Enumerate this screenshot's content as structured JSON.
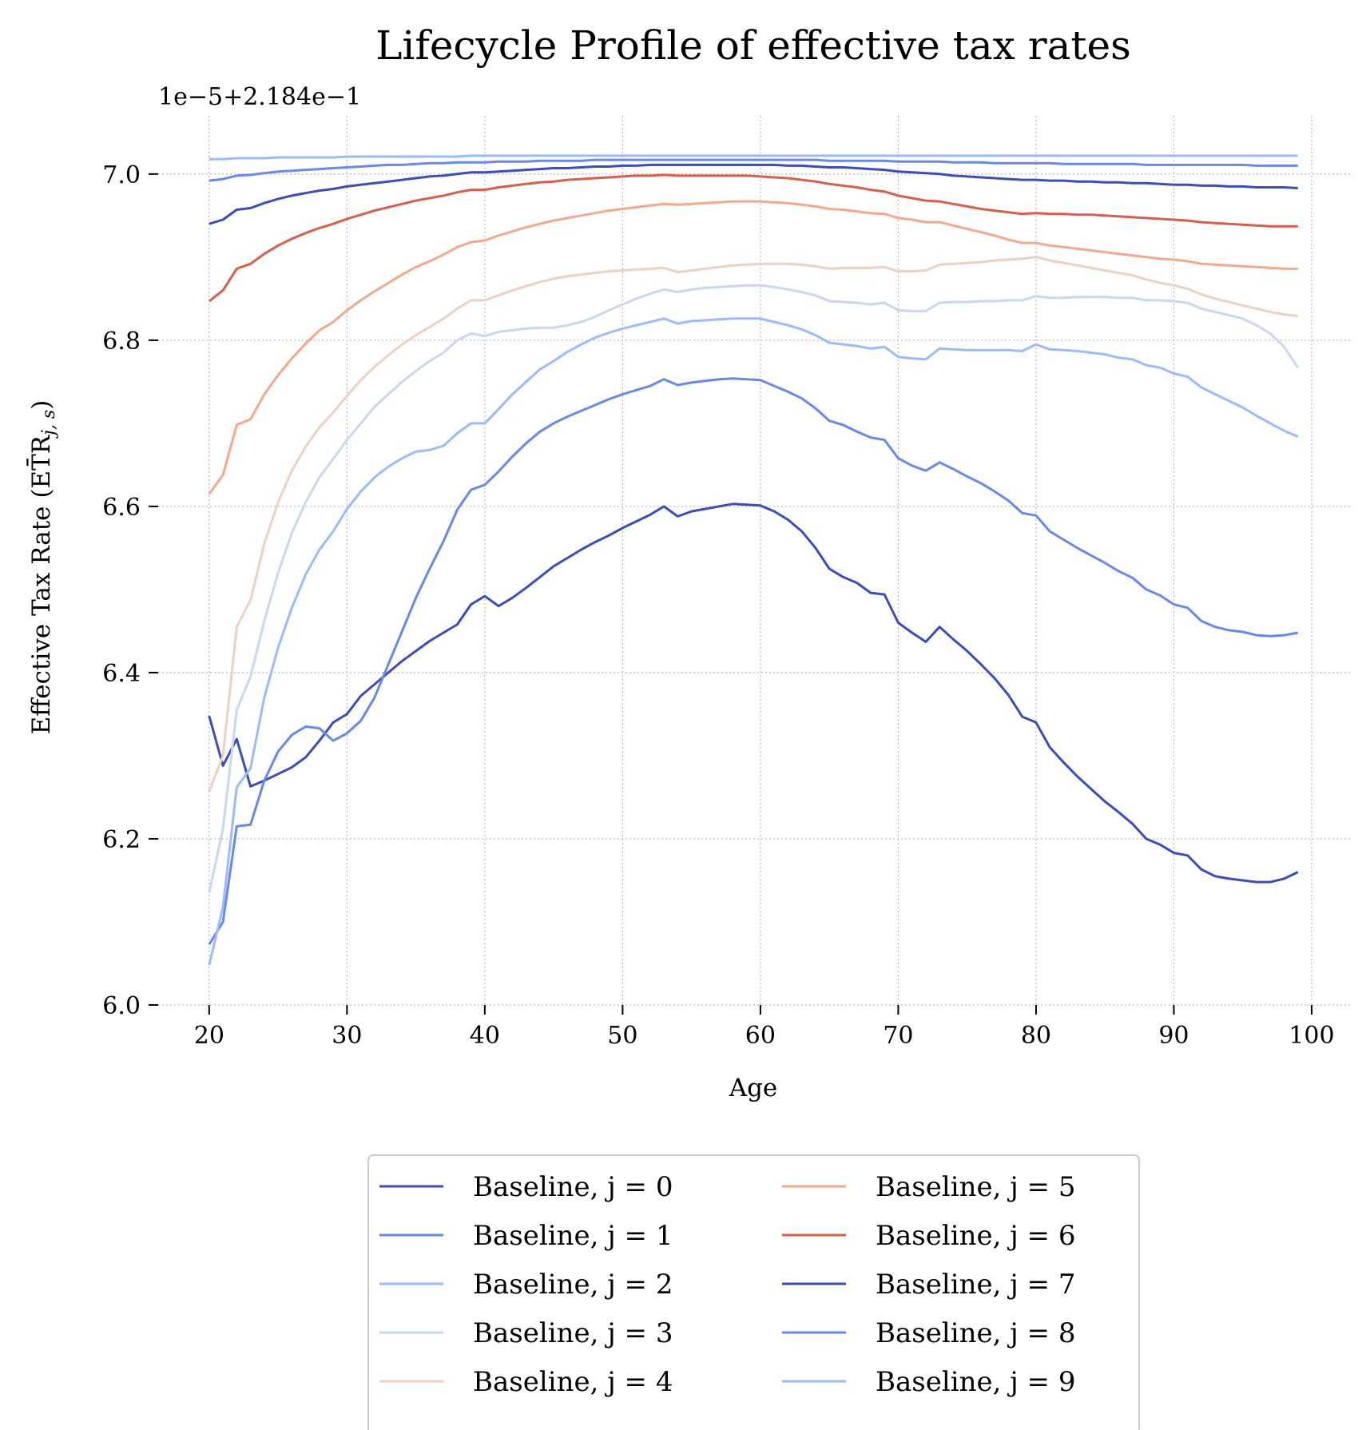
{
  "chart_data": {
    "type": "line",
    "title": "Lifecycle Profile of effective tax rates",
    "xlabel": "Age",
    "ylabel": "Effective Tax Rate (ET̄R",
    "ylabel_sub": "j, s",
    "ylabel_close": ")",
    "y_offset_label": "1e−5+2.184e−1",
    "xlim": [
      16.3,
      102.9
    ],
    "ylim": [
      6.0,
      7.07
    ],
    "x_ticks": [
      20,
      30,
      40,
      50,
      60,
      70,
      80,
      90,
      100
    ],
    "x_tick_labels": [
      "20",
      "30",
      "40",
      "50",
      "60",
      "70",
      "80",
      "90",
      "100"
    ],
    "y_ticks": [
      6.0,
      6.2,
      6.4,
      6.6,
      6.8,
      7.0
    ],
    "y_tick_labels": [
      "6.0",
      "6.2",
      "6.4",
      "6.6",
      "6.8",
      "7.0"
    ],
    "grid": true,
    "legend_position": "below plot, 2 columns",
    "x": [
      20,
      21,
      22,
      23,
      24,
      25,
      26,
      27,
      28,
      29,
      30,
      31,
      32,
      33,
      34,
      35,
      36,
      37,
      38,
      39,
      40,
      41,
      42,
      43,
      44,
      45,
      46,
      47,
      48,
      49,
      50,
      51,
      52,
      53,
      54,
      55,
      56,
      57,
      58,
      59,
      60,
      61,
      62,
      63,
      64,
      65,
      66,
      67,
      68,
      69,
      70,
      71,
      72,
      73,
      74,
      75,
      76,
      77,
      78,
      79,
      80,
      81,
      82,
      83,
      84,
      85,
      86,
      87,
      88,
      89,
      90,
      91,
      92,
      93,
      94,
      95,
      96,
      97,
      98,
      99
    ],
    "series": [
      {
        "name": "Baseline, j = 0",
        "color": "#3b4cc0",
        "values": [
          6.348,
          6.288,
          6.32,
          6.263,
          6.27,
          6.278,
          6.286,
          6.298,
          6.318,
          6.34,
          6.35,
          6.372,
          6.386,
          6.4,
          6.414,
          6.426,
          6.438,
          6.448,
          6.458,
          6.482,
          6.492,
          6.48,
          6.49,
          6.502,
          6.515,
          6.528,
          6.538,
          6.548,
          6.557,
          6.565,
          6.574,
          6.582,
          6.59,
          6.6,
          6.588,
          6.594,
          6.597,
          6.6,
          6.603,
          6.602,
          6.601,
          6.594,
          6.584,
          6.57,
          6.55,
          6.525,
          6.515,
          6.508,
          6.496,
          6.494,
          6.46,
          6.448,
          6.437,
          6.455,
          6.44,
          6.426,
          6.41,
          6.393,
          6.373,
          6.347,
          6.34,
          6.31,
          6.292,
          6.275,
          6.26,
          6.245,
          6.232,
          6.218,
          6.2,
          6.193,
          6.183,
          6.18,
          6.163,
          6.155,
          6.152,
          6.15,
          6.148,
          6.148,
          6.152,
          6.16
        ]
      },
      {
        "name": "Baseline, j = 1",
        "color": "#6788ee",
        "values": [
          6.073,
          6.1,
          6.215,
          6.217,
          6.27,
          6.305,
          6.325,
          6.335,
          6.333,
          6.318,
          6.327,
          6.342,
          6.37,
          6.41,
          6.45,
          6.49,
          6.525,
          6.558,
          6.596,
          6.62,
          6.626,
          6.642,
          6.66,
          6.676,
          6.69,
          6.7,
          6.708,
          6.715,
          6.722,
          6.729,
          6.735,
          6.74,
          6.745,
          6.753,
          6.746,
          6.749,
          6.751,
          6.753,
          6.754,
          6.753,
          6.752,
          6.745,
          6.738,
          6.73,
          6.718,
          6.703,
          6.698,
          6.69,
          6.683,
          6.68,
          6.658,
          6.649,
          6.643,
          6.653,
          6.645,
          6.636,
          6.628,
          6.618,
          6.607,
          6.592,
          6.589,
          6.57,
          6.56,
          6.55,
          6.541,
          6.532,
          6.522,
          6.514,
          6.5,
          6.493,
          6.482,
          6.478,
          6.462,
          6.455,
          6.451,
          6.449,
          6.445,
          6.444,
          6.445,
          6.448
        ]
      },
      {
        "name": "Baseline, j = 2",
        "color": "#9abbff",
        "values": [
          6.048,
          6.118,
          6.262,
          6.285,
          6.37,
          6.43,
          6.478,
          6.518,
          6.548,
          6.57,
          6.597,
          6.618,
          6.635,
          6.648,
          6.658,
          6.666,
          6.668,
          6.673,
          6.688,
          6.7,
          6.7,
          6.717,
          6.735,
          6.75,
          6.765,
          6.775,
          6.786,
          6.795,
          6.803,
          6.809,
          6.814,
          6.818,
          6.822,
          6.826,
          6.82,
          6.823,
          6.824,
          6.825,
          6.826,
          6.826,
          6.826,
          6.822,
          6.818,
          6.813,
          6.806,
          6.797,
          6.795,
          6.793,
          6.79,
          6.792,
          6.78,
          6.778,
          6.777,
          6.79,
          6.789,
          6.788,
          6.788,
          6.788,
          6.788,
          6.787,
          6.795,
          6.789,
          6.788,
          6.787,
          6.785,
          6.783,
          6.779,
          6.777,
          6.77,
          6.767,
          6.76,
          6.756,
          6.743,
          6.735,
          6.727,
          6.719,
          6.709,
          6.7,
          6.691,
          6.684
        ]
      },
      {
        "name": "Baseline, j = 3",
        "color": "#c9d7f0",
        "values": [
          6.135,
          6.212,
          6.355,
          6.395,
          6.462,
          6.52,
          6.568,
          6.605,
          6.635,
          6.657,
          6.68,
          6.7,
          6.72,
          6.735,
          6.75,
          6.763,
          6.775,
          6.785,
          6.8,
          6.808,
          6.805,
          6.81,
          6.812,
          6.814,
          6.815,
          6.815,
          6.818,
          6.822,
          6.828,
          6.836,
          6.843,
          6.85,
          6.856,
          6.861,
          6.858,
          6.861,
          6.863,
          6.864,
          6.865,
          6.866,
          6.866,
          6.864,
          6.861,
          6.858,
          6.854,
          6.847,
          6.846,
          6.845,
          6.843,
          6.845,
          6.836,
          6.835,
          6.835,
          6.845,
          6.846,
          6.846,
          6.847,
          6.847,
          6.848,
          6.848,
          6.853,
          6.851,
          6.851,
          6.852,
          6.852,
          6.852,
          6.851,
          6.851,
          6.848,
          6.848,
          6.847,
          6.845,
          6.838,
          6.834,
          6.83,
          6.826,
          6.818,
          6.808,
          6.792,
          6.767
        ]
      },
      {
        "name": "Baseline, j = 4",
        "color": "#edd1c2",
        "values": [
          6.257,
          6.3,
          6.455,
          6.487,
          6.555,
          6.605,
          6.643,
          6.672,
          6.695,
          6.713,
          6.733,
          6.752,
          6.768,
          6.782,
          6.795,
          6.806,
          6.816,
          6.826,
          6.838,
          6.848,
          6.848,
          6.854,
          6.86,
          6.865,
          6.87,
          6.874,
          6.877,
          6.879,
          6.881,
          6.883,
          6.884,
          6.885,
          6.886,
          6.887,
          6.882,
          6.884,
          6.886,
          6.888,
          6.89,
          6.891,
          6.892,
          6.892,
          6.892,
          6.891,
          6.889,
          6.886,
          6.887,
          6.887,
          6.887,
          6.888,
          6.883,
          6.883,
          6.884,
          6.891,
          6.892,
          6.893,
          6.894,
          6.896,
          6.897,
          6.898,
          6.9,
          6.896,
          6.893,
          6.89,
          6.887,
          6.884,
          6.881,
          6.878,
          6.873,
          6.869,
          6.866,
          6.862,
          6.855,
          6.85,
          6.846,
          6.842,
          6.838,
          6.834,
          6.831,
          6.829
        ]
      },
      {
        "name": "Baseline, j = 5",
        "color": "#f7a889",
        "values": [
          6.615,
          6.638,
          6.698,
          6.705,
          6.735,
          6.758,
          6.778,
          6.796,
          6.812,
          6.822,
          6.836,
          6.848,
          6.859,
          6.869,
          6.879,
          6.888,
          6.895,
          6.903,
          6.912,
          6.918,
          6.92,
          6.926,
          6.931,
          6.936,
          6.94,
          6.944,
          6.947,
          6.95,
          6.953,
          6.956,
          6.958,
          6.96,
          6.962,
          6.964,
          6.963,
          6.964,
          6.965,
          6.966,
          6.967,
          6.967,
          6.967,
          6.966,
          6.965,
          6.963,
          6.961,
          6.958,
          6.957,
          6.955,
          6.953,
          6.952,
          6.947,
          6.945,
          6.942,
          6.942,
          6.938,
          6.934,
          6.93,
          6.926,
          6.921,
          6.917,
          6.917,
          6.914,
          6.912,
          6.91,
          6.908,
          6.906,
          6.904,
          6.902,
          6.9,
          6.898,
          6.897,
          6.895,
          6.892,
          6.891,
          6.89,
          6.889,
          6.888,
          6.887,
          6.886,
          6.886
        ]
      },
      {
        "name": "Baseline, j = 6",
        "color": "#dc5d4a",
        "values": [
          6.847,
          6.86,
          6.886,
          6.892,
          6.904,
          6.914,
          6.922,
          6.929,
          6.935,
          6.94,
          6.946,
          6.951,
          6.956,
          6.96,
          6.964,
          6.968,
          6.971,
          6.974,
          6.978,
          6.981,
          6.981,
          6.984,
          6.986,
          6.988,
          6.99,
          6.991,
          6.993,
          6.994,
          6.995,
          6.996,
          6.997,
          6.998,
          6.998,
          6.999,
          6.998,
          6.998,
          6.998,
          6.998,
          6.998,
          6.998,
          6.997,
          6.996,
          6.995,
          6.993,
          6.991,
          6.988,
          6.986,
          6.984,
          6.981,
          6.979,
          6.974,
          6.971,
          6.968,
          6.967,
          6.964,
          6.961,
          6.958,
          6.956,
          6.954,
          6.952,
          6.953,
          6.952,
          6.952,
          6.951,
          6.951,
          6.95,
          6.949,
          6.948,
          6.947,
          6.946,
          6.945,
          6.944,
          6.942,
          6.941,
          6.94,
          6.939,
          6.938,
          6.937,
          6.937,
          6.937
        ]
      },
      {
        "name": "Baseline, j = 7",
        "color": "#3b4cc0",
        "values": [
          6.94,
          6.945,
          6.957,
          6.959,
          6.965,
          6.97,
          6.974,
          6.977,
          6.98,
          6.982,
          6.985,
          6.987,
          6.989,
          6.991,
          6.993,
          6.995,
          6.997,
          6.998,
          7.0,
          7.002,
          7.002,
          7.003,
          7.004,
          7.005,
          7.006,
          7.007,
          7.007,
          7.008,
          7.009,
          7.009,
          7.01,
          7.01,
          7.011,
          7.011,
          7.011,
          7.011,
          7.011,
          7.011,
          7.011,
          7.011,
          7.011,
          7.011,
          7.01,
          7.01,
          7.009,
          7.008,
          7.008,
          7.007,
          7.006,
          7.005,
          7.003,
          7.002,
          7.001,
          7.0,
          6.998,
          6.997,
          6.996,
          6.995,
          6.994,
          6.993,
          6.993,
          6.992,
          6.992,
          6.991,
          6.991,
          6.99,
          6.99,
          6.989,
          6.989,
          6.988,
          6.987,
          6.987,
          6.986,
          6.986,
          6.985,
          6.985,
          6.984,
          6.984,
          6.984,
          6.983
        ]
      },
      {
        "name": "Baseline, j = 8",
        "color": "#6788ee",
        "values": [
          6.992,
          6.994,
          6.998,
          6.999,
          7.001,
          7.003,
          7.004,
          7.005,
          7.006,
          7.007,
          7.008,
          7.009,
          7.01,
          7.011,
          7.011,
          7.012,
          7.013,
          7.013,
          7.014,
          7.014,
          7.014,
          7.015,
          7.015,
          7.015,
          7.016,
          7.016,
          7.016,
          7.016,
          7.017,
          7.017,
          7.017,
          7.017,
          7.017,
          7.017,
          7.017,
          7.017,
          7.017,
          7.017,
          7.017,
          7.017,
          7.017,
          7.017,
          7.017,
          7.017,
          7.017,
          7.016,
          7.016,
          7.016,
          7.016,
          7.016,
          7.015,
          7.015,
          7.015,
          7.015,
          7.014,
          7.014,
          7.014,
          7.013,
          7.013,
          7.013,
          7.013,
          7.013,
          7.012,
          7.012,
          7.012,
          7.012,
          7.012,
          7.012,
          7.011,
          7.011,
          7.011,
          7.011,
          7.011,
          7.011,
          7.011,
          7.011,
          7.01,
          7.01,
          7.01,
          7.01
        ]
      },
      {
        "name": "Baseline, j = 9",
        "color": "#9abbff",
        "values": [
          7.018,
          7.018,
          7.019,
          7.019,
          7.019,
          7.02,
          7.02,
          7.02,
          7.02,
          7.02,
          7.021,
          7.021,
          7.021,
          7.021,
          7.021,
          7.021,
          7.021,
          7.021,
          7.021,
          7.022,
          7.022,
          7.022,
          7.022,
          7.022,
          7.022,
          7.022,
          7.022,
          7.022,
          7.022,
          7.022,
          7.022,
          7.022,
          7.022,
          7.022,
          7.022,
          7.022,
          7.022,
          7.022,
          7.022,
          7.022,
          7.022,
          7.022,
          7.022,
          7.022,
          7.022,
          7.022,
          7.022,
          7.022,
          7.022,
          7.022,
          7.022,
          7.022,
          7.022,
          7.022,
          7.022,
          7.022,
          7.022,
          7.022,
          7.022,
          7.022,
          7.022,
          7.022,
          7.022,
          7.022,
          7.022,
          7.022,
          7.022,
          7.022,
          7.022,
          7.022,
          7.022,
          7.022,
          7.022,
          7.022,
          7.022,
          7.022,
          7.022,
          7.022,
          7.022,
          7.022
        ]
      }
    ]
  }
}
